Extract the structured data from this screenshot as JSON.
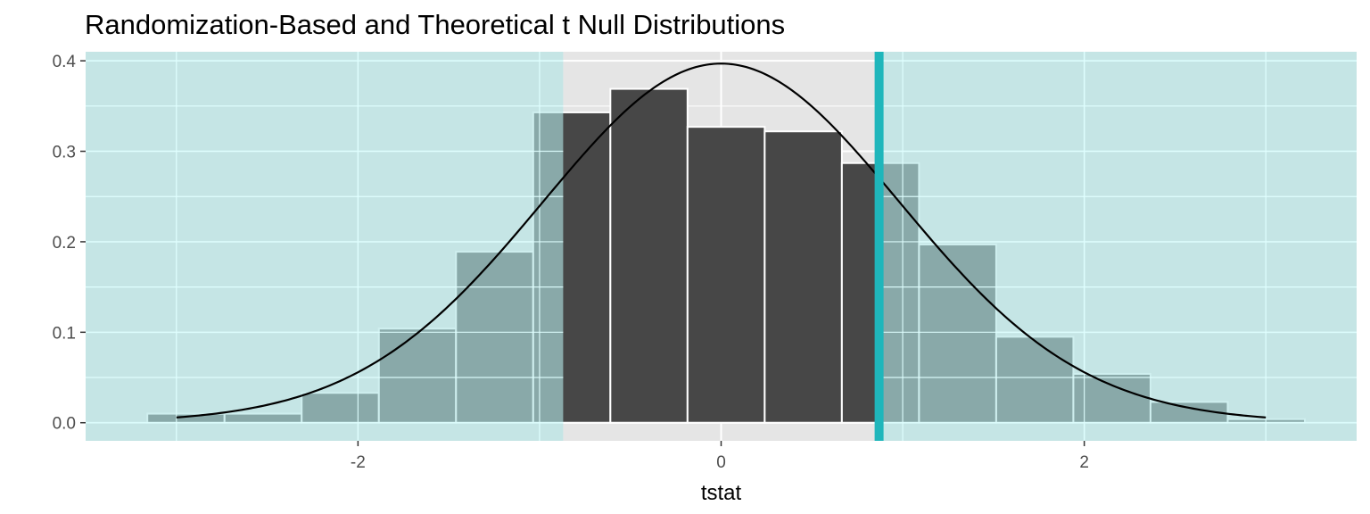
{
  "chart_data": {
    "type": "bar",
    "title": "Randomization-Based and Theoretical t Null Distributions",
    "xlabel": "tstat",
    "ylabel": "",
    "xlim": [
      -3.5,
      3.5
    ],
    "ylim": [
      -0.02,
      0.41
    ],
    "x_ticks": [
      -2,
      0,
      2
    ],
    "x_tick_labels": [
      "-2",
      "0",
      "2"
    ],
    "y_ticks": [
      0.0,
      0.1,
      0.2,
      0.3,
      0.4
    ],
    "y_tick_labels": [
      "0.0",
      "0.1",
      "0.2",
      "0.3",
      "0.4"
    ],
    "bin_width": 0.425,
    "bins": [
      {
        "x0": -3.16,
        "x1": -2.735,
        "density": 0.01
      },
      {
        "x0": -2.735,
        "x1": -2.31,
        "density": 0.01
      },
      {
        "x0": -2.31,
        "x1": -1.885,
        "density": 0.033
      },
      {
        "x0": -1.885,
        "x1": -1.46,
        "density": 0.104
      },
      {
        "x0": -1.46,
        "x1": -1.035,
        "density": 0.189
      },
      {
        "x0": -1.035,
        "x1": -0.61,
        "density": 0.343
      },
      {
        "x0": -0.61,
        "x1": -0.185,
        "density": 0.369
      },
      {
        "x0": -0.185,
        "x1": 0.24,
        "density": 0.327
      },
      {
        "x0": 0.24,
        "x1": 0.665,
        "density": 0.322
      },
      {
        "x0": 0.665,
        "x1": 1.09,
        "density": 0.287
      },
      {
        "x0": 1.09,
        "x1": 1.515,
        "density": 0.197
      },
      {
        "x0": 1.515,
        "x1": 1.94,
        "density": 0.095
      },
      {
        "x0": 1.94,
        "x1": 2.365,
        "density": 0.054
      },
      {
        "x0": 2.365,
        "x1": 2.79,
        "density": 0.023
      },
      {
        "x0": 2.79,
        "x1": 3.215,
        "density": 0.004
      }
    ],
    "theoretical_curve": {
      "distribution": "t",
      "df": 50,
      "x_range": [
        -3,
        3
      ]
    },
    "observed_stat": 0.87,
    "shaded_regions": [
      [
        -3.5,
        -0.87
      ],
      [
        0.87,
        3.5
      ]
    ],
    "colors": {
      "panel_background": "#e5e5e5",
      "grid": "#ffffff",
      "bar_fill": "#474747",
      "bar_outline": "#ffffff",
      "shade_fill": "#b2e5e5",
      "shade_grid": "#e0ffff",
      "observed_line": "#1fb6bb",
      "curve": "#000000"
    }
  }
}
